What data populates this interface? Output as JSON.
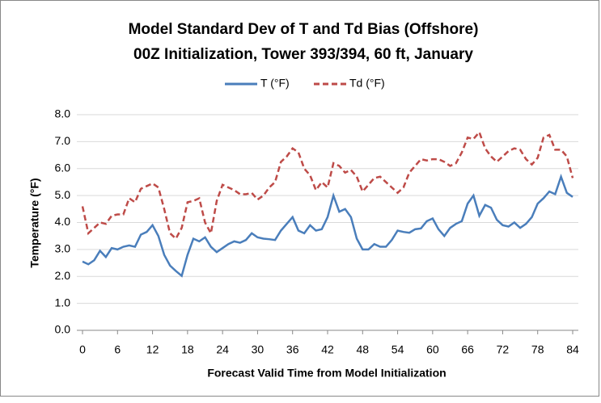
{
  "chart_data": {
    "type": "line",
    "title": "Model Standard Dev of T and Td Bias (Offshore)",
    "subtitle": "00Z Initialization, Tower 393/394, 60 ft, January",
    "x_label": "Forecast Valid Time from  Model Initialization",
    "y_label": "Temperature (°F)",
    "x": [
      0,
      1,
      2,
      3,
      4,
      5,
      6,
      7,
      8,
      9,
      10,
      11,
      12,
      13,
      14,
      15,
      16,
      17,
      18,
      19,
      20,
      21,
      22,
      23,
      24,
      25,
      26,
      27,
      28,
      29,
      30,
      31,
      32,
      33,
      34,
      35,
      36,
      37,
      38,
      39,
      40,
      41,
      42,
      43,
      44,
      45,
      46,
      47,
      48,
      49,
      50,
      51,
      52,
      53,
      54,
      55,
      56,
      57,
      58,
      59,
      60,
      61,
      62,
      63,
      64,
      65,
      66,
      67,
      68,
      69,
      70,
      71,
      72,
      73,
      74,
      75,
      76,
      77,
      78,
      79,
      80,
      81,
      82,
      83,
      84
    ],
    "series": [
      {
        "name": "T (°F)",
        "color": "#4a7ebb",
        "style": "solid",
        "values": [
          2.55,
          2.45,
          2.6,
          2.95,
          2.72,
          3.05,
          3.0,
          3.1,
          3.15,
          3.1,
          3.55,
          3.65,
          3.9,
          3.5,
          2.8,
          2.4,
          2.2,
          2.02,
          2.8,
          3.4,
          3.3,
          3.45,
          3.1,
          2.9,
          3.05,
          3.2,
          3.3,
          3.25,
          3.35,
          3.6,
          3.45,
          3.4,
          3.38,
          3.35,
          3.7,
          3.95,
          4.2,
          3.7,
          3.6,
          3.9,
          3.7,
          3.75,
          4.2,
          5.0,
          4.4,
          4.5,
          4.2,
          3.4,
          3.0,
          3.0,
          3.2,
          3.1,
          3.1,
          3.35,
          3.7,
          3.65,
          3.62,
          3.75,
          3.78,
          4.05,
          4.15,
          3.75,
          3.5,
          3.8,
          3.95,
          4.05,
          4.7,
          5.0,
          4.25,
          4.65,
          4.55,
          4.1,
          3.9,
          3.85,
          4.0,
          3.8,
          3.95,
          4.2,
          4.7,
          4.9,
          5.15,
          5.05,
          5.7,
          5.1,
          4.95
        ]
      },
      {
        "name": "Td (°F)",
        "color": "#be4b48",
        "style": "dashed",
        "values": [
          4.6,
          3.6,
          3.8,
          4.0,
          3.95,
          4.25,
          4.3,
          4.3,
          4.9,
          4.75,
          5.25,
          5.35,
          5.45,
          5.3,
          4.5,
          3.6,
          3.4,
          3.8,
          4.75,
          4.8,
          4.9,
          4.0,
          3.6,
          4.8,
          5.4,
          5.3,
          5.2,
          5.05,
          5.05,
          5.1,
          4.85,
          5.0,
          5.3,
          5.5,
          6.25,
          6.45,
          6.75,
          6.6,
          6.0,
          5.75,
          5.2,
          5.5,
          5.3,
          6.2,
          6.1,
          5.85,
          5.95,
          5.7,
          5.15,
          5.4,
          5.65,
          5.7,
          5.5,
          5.3,
          5.1,
          5.3,
          5.85,
          6.1,
          6.35,
          6.3,
          6.35,
          6.35,
          6.25,
          6.1,
          6.2,
          6.6,
          7.15,
          7.1,
          7.35,
          6.75,
          6.45,
          6.25,
          6.45,
          6.65,
          6.75,
          6.7,
          6.35,
          6.15,
          6.4,
          7.15,
          7.25,
          6.7,
          6.7,
          6.45,
          5.65
        ]
      }
    ],
    "xlim": [
      0,
      84
    ],
    "xticks": [
      0,
      6,
      12,
      18,
      24,
      30,
      36,
      42,
      48,
      54,
      60,
      66,
      72,
      78,
      84
    ],
    "ylim": [
      0,
      8
    ],
    "yticks": [
      {
        "value": 0,
        "label": "0.0"
      },
      {
        "value": 1,
        "label": "1.0"
      },
      {
        "value": 2,
        "label": "2.0"
      },
      {
        "value": 3,
        "label": "3.0"
      },
      {
        "value": 4,
        "label": "4.0"
      },
      {
        "value": 5,
        "label": "5.0"
      },
      {
        "value": 6,
        "label": "6.0"
      },
      {
        "value": 7,
        "label": "7.0"
      },
      {
        "value": 8,
        "label": "8.0"
      }
    ],
    "grid": true,
    "legend": "top"
  }
}
